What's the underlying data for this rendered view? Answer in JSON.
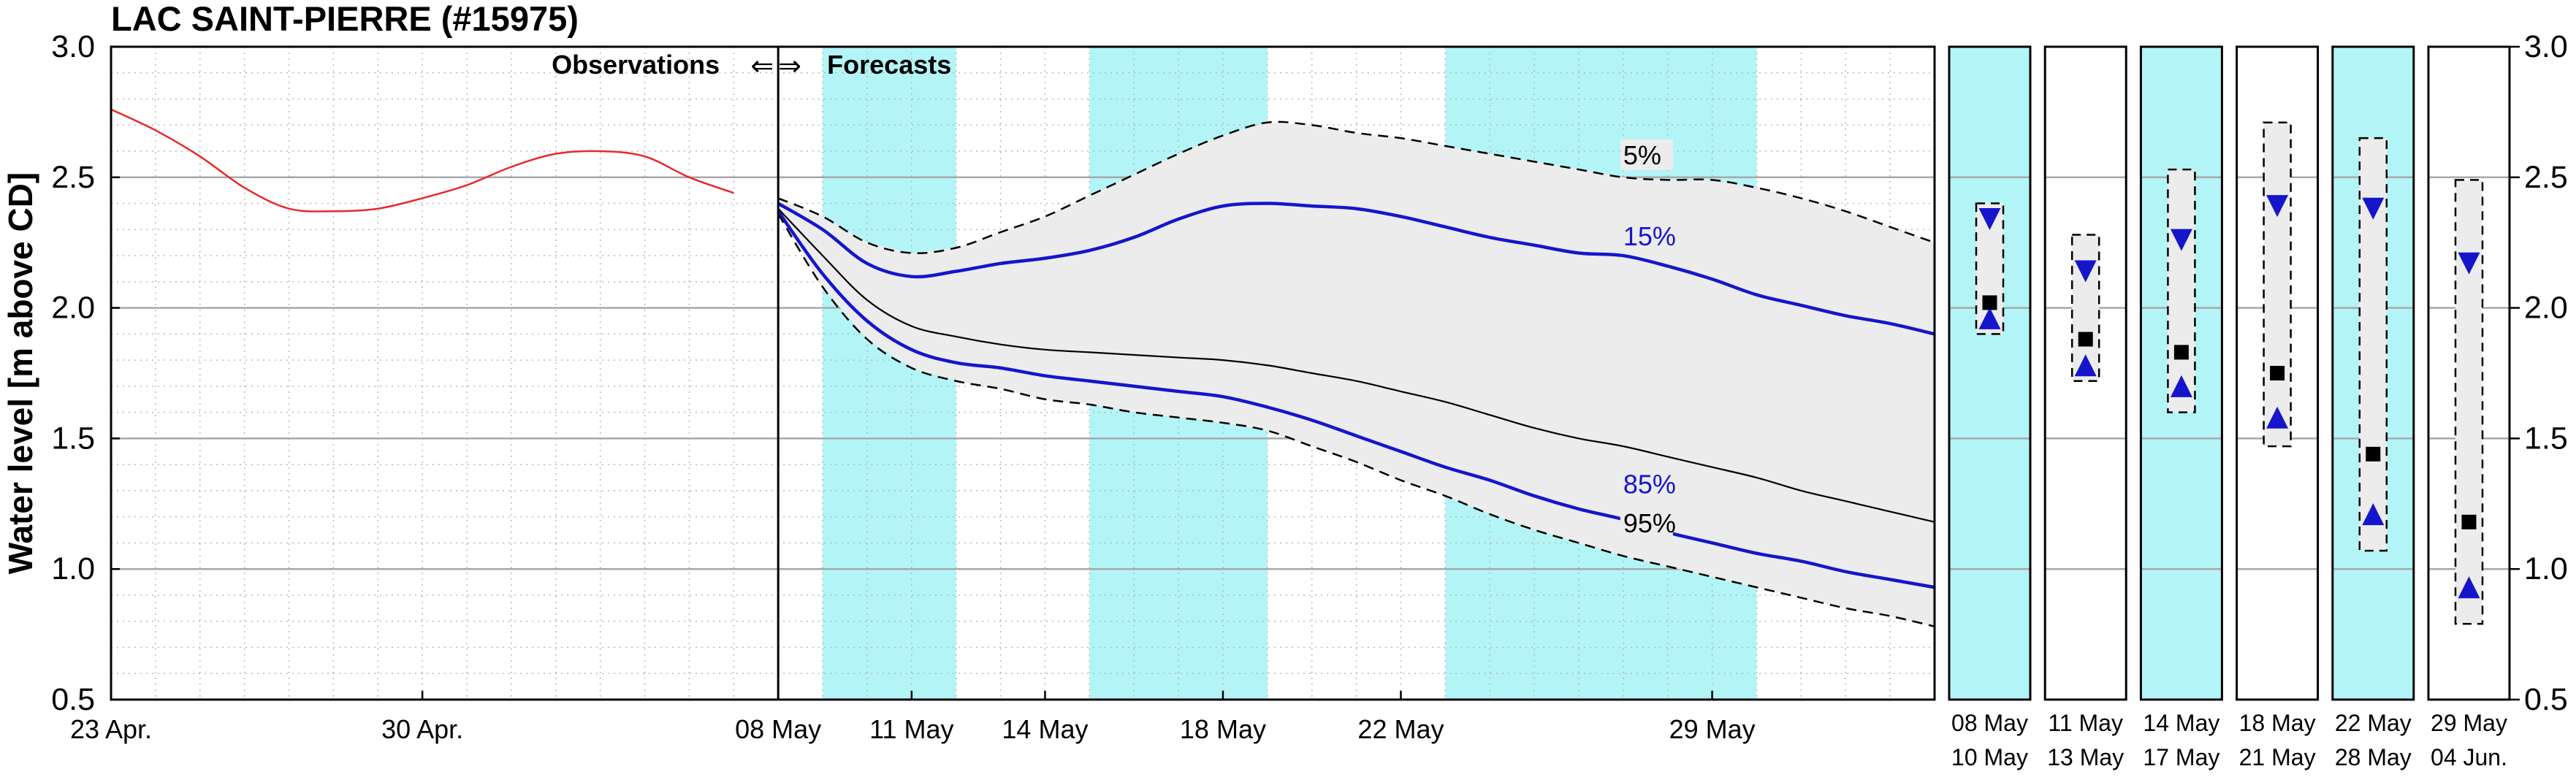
{
  "chart_data": {
    "type": "line",
    "title": "LAC SAINT-PIERRE (#15975)",
    "ylabel": "Water level [m above CD]",
    "xlabel": "",
    "ylim": [
      0.5,
      3.0
    ],
    "yticks": [
      0.5,
      1.0,
      1.5,
      2.0,
      2.5,
      3.0
    ],
    "ytick_labels": [
      "0.5",
      "1.0",
      "1.5",
      "2.0",
      "2.5",
      "3.0"
    ],
    "x_start_day": 0,
    "x_end_day": 41,
    "forecast_start_day": 15,
    "xticks": [
      {
        "day": 0,
        "label": "23 Apr."
      },
      {
        "day": 7,
        "label": "30 Apr."
      },
      {
        "day": 15,
        "label": "08 May"
      },
      {
        "day": 18,
        "label": "11 May"
      },
      {
        "day": 21,
        "label": "14 May"
      },
      {
        "day": 25,
        "label": "18 May"
      },
      {
        "day": 29,
        "label": "22 May"
      },
      {
        "day": 36,
        "label": "29 May"
      }
    ],
    "annotation_observations": "Observations",
    "annotation_arrows": "⇐⇒",
    "annotation_forecasts": "Forecasts",
    "shaded_periods": [
      [
        16,
        19
      ],
      [
        22,
        26
      ],
      [
        30,
        37
      ]
    ],
    "shade_color": "#b3f5f7",
    "band_color": "#ececec",
    "observed": {
      "color": "#e8282b",
      "x": [
        0,
        1,
        2,
        3,
        4,
        5,
        6,
        7,
        8,
        9,
        10,
        11,
        12,
        13,
        14
      ],
      "y": [
        2.76,
        2.68,
        2.58,
        2.46,
        2.38,
        2.37,
        2.38,
        2.42,
        2.47,
        2.54,
        2.59,
        2.6,
        2.58,
        2.5,
        2.44
      ]
    },
    "forecast_days": [
      15,
      16,
      17,
      18,
      19,
      20,
      21,
      22,
      23,
      24,
      25,
      26,
      27,
      28,
      29,
      30,
      31,
      32,
      33,
      34,
      35,
      36,
      37,
      38,
      39,
      40,
      41
    ],
    "series": [
      {
        "name": "5%",
        "style": "dashed",
        "color": "#000000",
        "y": [
          2.42,
          2.35,
          2.25,
          2.21,
          2.23,
          2.29,
          2.35,
          2.43,
          2.51,
          2.59,
          2.66,
          2.71,
          2.7,
          2.67,
          2.65,
          2.62,
          2.59,
          2.56,
          2.53,
          2.5,
          2.49,
          2.49,
          2.46,
          2.42,
          2.37,
          2.31,
          2.25
        ]
      },
      {
        "name": "15%",
        "style": "solid-thick",
        "color": "#1515cc",
        "y": [
          2.4,
          2.3,
          2.17,
          2.12,
          2.14,
          2.17,
          2.19,
          2.22,
          2.27,
          2.34,
          2.39,
          2.4,
          2.39,
          2.38,
          2.35,
          2.31,
          2.27,
          2.24,
          2.21,
          2.2,
          2.16,
          2.11,
          2.05,
          2.01,
          1.97,
          1.94,
          1.9
        ]
      },
      {
        "name": "median",
        "style": "solid",
        "color": "#000000",
        "y": [
          2.38,
          2.2,
          2.03,
          1.93,
          1.89,
          1.86,
          1.84,
          1.83,
          1.82,
          1.81,
          1.8,
          1.78,
          1.75,
          1.72,
          1.68,
          1.64,
          1.59,
          1.54,
          1.5,
          1.47,
          1.43,
          1.39,
          1.35,
          1.3,
          1.26,
          1.22,
          1.18
        ]
      },
      {
        "name": "85%",
        "style": "solid-thick",
        "color": "#1515cc",
        "y": [
          2.37,
          2.13,
          1.95,
          1.84,
          1.79,
          1.77,
          1.74,
          1.72,
          1.7,
          1.68,
          1.66,
          1.62,
          1.57,
          1.51,
          1.45,
          1.39,
          1.34,
          1.28,
          1.23,
          1.19,
          1.14,
          1.1,
          1.06,
          1.03,
          0.99,
          0.96,
          0.93
        ]
      },
      {
        "name": "95%",
        "style": "dashed",
        "color": "#000000",
        "y": [
          2.36,
          2.08,
          1.88,
          1.77,
          1.72,
          1.69,
          1.65,
          1.63,
          1.6,
          1.58,
          1.56,
          1.53,
          1.47,
          1.41,
          1.34,
          1.28,
          1.21,
          1.15,
          1.1,
          1.05,
          1.01,
          0.97,
          0.93,
          0.89,
          0.85,
          0.82,
          0.78
        ]
      }
    ],
    "series_labels": [
      {
        "text": "5%",
        "color": "#000000",
        "day": 34,
        "y": 2.55
      },
      {
        "text": "15%",
        "color": "#1515cc",
        "day": 34,
        "y": 2.24
      },
      {
        "text": "85%",
        "color": "#1515cc",
        "day": 34,
        "y": 1.29
      },
      {
        "text": "95%",
        "color": "#000000",
        "day": 34,
        "y": 1.14
      }
    ],
    "period_panels": [
      {
        "label_top": "08  May",
        "label_bottom": "10  May",
        "shaded": true,
        "box_top": 2.4,
        "box_bottom": 1.9,
        "median": 2.02,
        "high": 2.34,
        "low": 1.96
      },
      {
        "label_top": "11  May",
        "label_bottom": "13  May",
        "shaded": false,
        "box_top": 2.28,
        "box_bottom": 1.72,
        "median": 1.88,
        "high": 2.14,
        "low": 1.78
      },
      {
        "label_top": "14  May",
        "label_bottom": "17  May",
        "shaded": true,
        "box_top": 2.53,
        "box_bottom": 1.6,
        "median": 1.83,
        "high": 2.26,
        "low": 1.7
      },
      {
        "label_top": "18  May",
        "label_bottom": "21  May",
        "shaded": false,
        "box_top": 2.71,
        "box_bottom": 1.47,
        "median": 1.75,
        "high": 2.39,
        "low": 1.58
      },
      {
        "label_top": "22  May",
        "label_bottom": "28  May",
        "shaded": true,
        "box_top": 2.65,
        "box_bottom": 1.07,
        "median": 1.44,
        "high": 2.38,
        "low": 1.21
      },
      {
        "label_top": "29  May",
        "label_bottom": "04  Jun.",
        "shaded": false,
        "box_top": 2.49,
        "box_bottom": 0.79,
        "median": 1.18,
        "high": 2.17,
        "low": 0.93
      }
    ],
    "marker_color_triangles": "#1515cc",
    "marker_color_median": "#000000"
  }
}
